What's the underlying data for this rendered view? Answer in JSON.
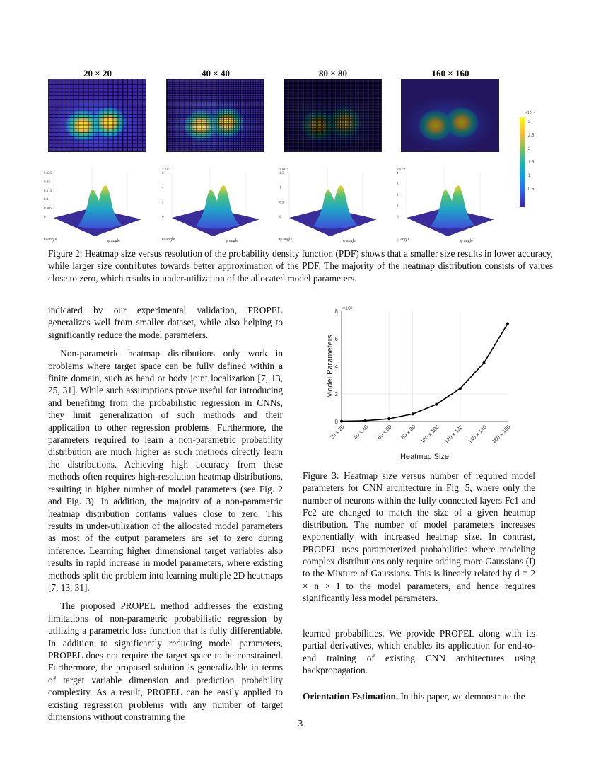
{
  "figure2": {
    "titles": [
      "20 × 20",
      "40 × 40",
      "80 × 80",
      "160 × 160"
    ],
    "grid_divisions": [
      20,
      40,
      80,
      160
    ],
    "plot_axes": {
      "phi_label": "φ angle",
      "psi_label": "ψ angle"
    },
    "plot_zticks": [
      [
        "0",
        "0.005",
        "0.01",
        "0.015",
        "0.02",
        "0.025"
      ],
      [
        "0",
        "2",
        "4",
        "6"
      ],
      [
        "0",
        "0.5",
        "1",
        "1.5"
      ],
      [
        "0",
        "1",
        "2",
        "3",
        "4"
      ]
    ],
    "plot_multipliers": [
      "",
      "×10⁻³",
      "×10⁻³",
      "×10⁻⁴"
    ],
    "colorbar": {
      "multiplier": "×10⁻⁴",
      "ticks": [
        "3",
        "2.5",
        "2",
        "1.5",
        "1",
        "0.5"
      ]
    },
    "caption": "Figure 2: Heatmap size versus resolution of the probability density function (PDF) shows that a smaller size results in lower accuracy, while larger size contributes towards better approximation of the PDF. The majority of the heatmap distribution consists of values close to zero, which results in under-utilization of the allocated model parameters."
  },
  "left_column": [
    "indicated by our experimental validation, PROPEL generalizes well from smaller dataset, while also helping to significantly reduce the model parameters.",
    "Non-parametric heatmap distributions only work in problems where target space can be fully defined within a finite domain, such as hand or body joint localization [7, 13, 25, 31]. While such assumptions prove useful for introducing and benefiting from the probabilistic regression in CNNs, they limit generalization of such methods and their application to other regression problems. Furthermore, the parameters required to learn a non-parametric probability distribution are much higher as such methods directly learn the distributions. Achieving high accuracy from these methods often requires high-resolution heatmap distributions, resulting in higher number of model parameters (see Fig. 2 and Fig. 3). In addition, the majority of a non-parametric heatmap distribution contains values close to zero. This results in under-utilization of the allocated model parameters as most of the output parameters are set to zero during inference. Learning higher dimensional target variables also results in rapid increase in model parameters, where existing methods split the problem into learning multiple 2D heatmaps [7, 13, 31].",
    "The proposed PROPEL method addresses the existing limitations of non-parametric probabilistic regression by utilizing a parametric loss function that is fully differentiable. In addition to significantly reducing model parameters, PROPEL does not require the target space to be constrained. Furthermore, the proposed solution is generalizable in terms of target variable dimension and prediction probability complexity. As a result, PROPEL can be easily applied to existing regression problems with any number of target dimensions without constraining the"
  ],
  "chart_data": {
    "type": "line",
    "title": "",
    "xlabel": "Heatmap Size",
    "ylabel": "Model Parameters",
    "y_multiplier": "×10⁸",
    "categories": [
      "20 x 20",
      "40 x 40",
      "60 x 60",
      "80 x 80",
      "100 x 100",
      "120 x 120",
      "140 x 140",
      "160 x 160"
    ],
    "values": [
      0.02,
      0.06,
      0.2,
      0.55,
      1.25,
      2.4,
      4.25,
      7.1
    ],
    "ylim": [
      0,
      8
    ],
    "yticks": [
      "0",
      "2",
      "4",
      "6",
      "8"
    ],
    "grid": true
  },
  "figure3_caption": "Figure 3: Heatmap size versus number of required model parameters for CNN architecture in Fig. 5, where only the number of neurons within the fully connected layers Fc1 and Fc2 are changed to match the size of a given heatmap distribution. The number of model parameters increases exponentially with increased heatmap size. In contrast, PROPEL uses parameterized probabilities where modeling complex distributions only require adding more Gaussians (I) to the Mixture of Gaussians. This is linearly related by d = 2 × n × I to the model parameters, and hence requires significantly less model parameters.",
  "right_text": "learned probabilities. We provide PROPEL along with its partial derivatives, which enables its application for end-to-end training of existing CNN architectures using backpropagation.",
  "section_heading": "Orientation Estimation.",
  "section_text": "In this paper, we demonstrate the",
  "page_number": "3"
}
